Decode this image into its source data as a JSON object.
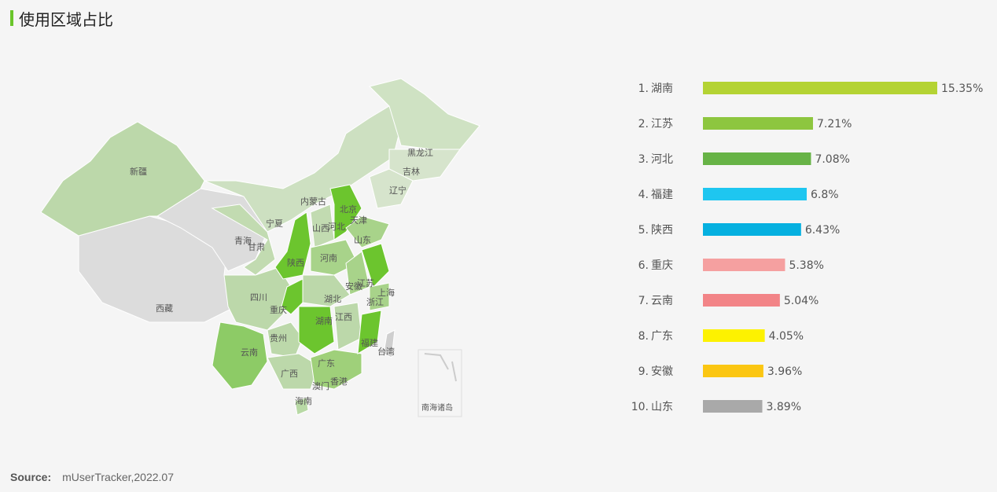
{
  "header": {
    "title": "使用区域占比"
  },
  "source": {
    "label": "Source:",
    "value": "mUserTracker,2022.07"
  },
  "colors": {
    "accent": "#6ac52b",
    "map_highlight": "#6cc52e",
    "map_mid": "#8dcb66",
    "map_light": "#b8d9a5",
    "map_pale": "#cfe2c3",
    "map_none": "#dcdcdc"
  },
  "map": {
    "labels": [
      "新疆",
      "西藏",
      "青海",
      "甘肃",
      "宁夏",
      "内蒙古",
      "黑龙江",
      "吉林",
      "辽宁",
      "北京",
      "天津",
      "河北",
      "山西",
      "山东",
      "陕西",
      "河南",
      "四川",
      "重庆",
      "湖北",
      "安徽",
      "上海",
      "江苏",
      "浙江",
      "湖南",
      "江西",
      "贵州",
      "云南",
      "福建",
      "台湾",
      "广西",
      "广东",
      "香港",
      "澳门",
      "海南",
      "南海诸岛"
    ]
  },
  "chart_data": {
    "type": "bar",
    "orientation": "horizontal",
    "title": "使用区域占比",
    "categories": [
      "湖南",
      "江苏",
      "河北",
      "福建",
      "陕西",
      "重庆",
      "云南",
      "广东",
      "安徽",
      "山东"
    ],
    "values": [
      15.35,
      7.21,
      7.08,
      6.8,
      6.43,
      5.38,
      5.04,
      4.05,
      3.96,
      3.89
    ],
    "value_labels": [
      "15.35%",
      "7.21%",
      "7.08%",
      "6.8%",
      "6.43%",
      "5.38%",
      "5.04%",
      "4.05%",
      "3.96%",
      "3.89%"
    ],
    "ranks": [
      "1.",
      "2.",
      "3.",
      "4.",
      "5.",
      "6.",
      "7.",
      "8.",
      "9.",
      "10."
    ],
    "colors": [
      "#b4d334",
      "#8dc63f",
      "#67b346",
      "#1ec6f0",
      "#05b0e0",
      "#f5a0a0",
      "#f28487",
      "#fdf200",
      "#fbc612",
      "#a9a9a9"
    ],
    "xlim": [
      0,
      15.35
    ]
  }
}
